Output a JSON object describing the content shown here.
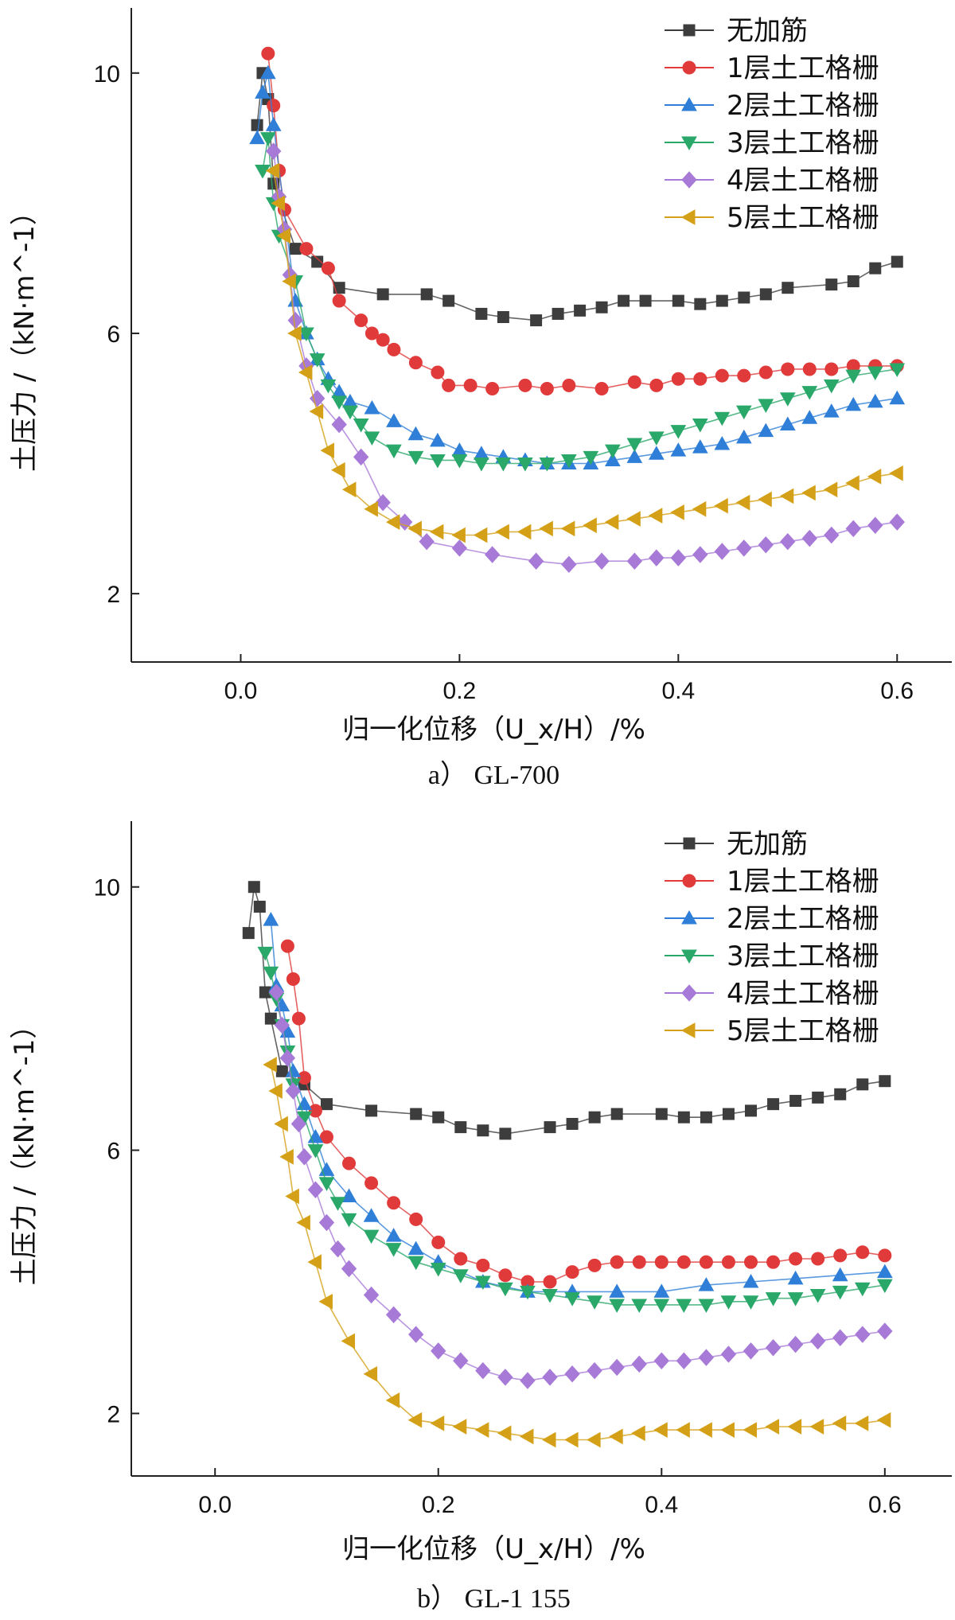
{
  "chart_data": [
    {
      "type": "line",
      "caption": "a） GL-700",
      "xlabel": "归一化位移（U_x/H）/%",
      "ylabel": "土压力 /（kN·m^-1）",
      "xlim": [
        -0.1,
        0.65
      ],
      "ylim": [
        0.95,
        11.0
      ],
      "xticks": [
        "0.0",
        "0.2",
        "0.4",
        "0.6"
      ],
      "yticks": [
        "2",
        "6",
        "10"
      ],
      "legend_position": "top-right",
      "series": [
        {
          "name": "无加筋",
          "marker": "square",
          "color": "#3d3d3d",
          "x": [
            0.015,
            0.02,
            0.025,
            0.03,
            0.05,
            0.07,
            0.09,
            0.13,
            0.17,
            0.19,
            0.22,
            0.24,
            0.27,
            0.29,
            0.31,
            0.33,
            0.35,
            0.37,
            0.4,
            0.42,
            0.44,
            0.46,
            0.48,
            0.5,
            0.54,
            0.56,
            0.58,
            0.6
          ],
          "y": [
            9.2,
            10.0,
            9.6,
            8.3,
            7.3,
            7.1,
            6.7,
            6.6,
            6.6,
            6.5,
            6.3,
            6.25,
            6.2,
            6.3,
            6.35,
            6.4,
            6.5,
            6.5,
            6.5,
            6.45,
            6.5,
            6.55,
            6.6,
            6.7,
            6.75,
            6.8,
            7.0,
            7.1
          ]
        },
        {
          "name": "1层土工格栅",
          "marker": "circle",
          "color": "#e03a3a",
          "x": [
            0.025,
            0.03,
            0.035,
            0.04,
            0.06,
            0.08,
            0.09,
            0.11,
            0.12,
            0.13,
            0.14,
            0.16,
            0.18,
            0.19,
            0.21,
            0.23,
            0.26,
            0.28,
            0.3,
            0.33,
            0.36,
            0.38,
            0.4,
            0.42,
            0.44,
            0.46,
            0.48,
            0.5,
            0.52,
            0.54,
            0.56,
            0.58,
            0.6
          ],
          "y": [
            10.3,
            9.5,
            8.5,
            7.9,
            7.3,
            7.0,
            6.5,
            6.2,
            6.0,
            5.9,
            5.75,
            5.55,
            5.4,
            5.2,
            5.2,
            5.15,
            5.2,
            5.15,
            5.2,
            5.15,
            5.25,
            5.2,
            5.3,
            5.3,
            5.35,
            5.35,
            5.4,
            5.45,
            5.45,
            5.45,
            5.5,
            5.5,
            5.5
          ]
        },
        {
          "name": "2层土工格栅",
          "marker": "triangle-up",
          "color": "#2f7fd8",
          "x": [
            0.015,
            0.02,
            0.025,
            0.03,
            0.05,
            0.06,
            0.07,
            0.08,
            0.09,
            0.1,
            0.12,
            0.14,
            0.16,
            0.18,
            0.2,
            0.22,
            0.24,
            0.26,
            0.28,
            0.3,
            0.32,
            0.34,
            0.36,
            0.38,
            0.4,
            0.42,
            0.44,
            0.46,
            0.48,
            0.5,
            0.52,
            0.54,
            0.56,
            0.58,
            0.6
          ],
          "y": [
            9.0,
            9.7,
            10.0,
            9.2,
            6.5,
            6.0,
            5.6,
            5.3,
            5.1,
            4.95,
            4.85,
            4.65,
            4.45,
            4.35,
            4.2,
            4.15,
            4.1,
            4.05,
            4.0,
            4.0,
            4.0,
            4.05,
            4.1,
            4.15,
            4.2,
            4.25,
            4.3,
            4.4,
            4.5,
            4.6,
            4.7,
            4.8,
            4.9,
            4.95,
            5.0
          ]
        },
        {
          "name": "3层土工格栅",
          "marker": "triangle-down",
          "color": "#2aa86a",
          "x": [
            0.02,
            0.025,
            0.03,
            0.035,
            0.05,
            0.06,
            0.07,
            0.08,
            0.09,
            0.1,
            0.11,
            0.12,
            0.14,
            0.16,
            0.18,
            0.2,
            0.22,
            0.24,
            0.26,
            0.28,
            0.3,
            0.32,
            0.34,
            0.36,
            0.38,
            0.4,
            0.42,
            0.44,
            0.46,
            0.48,
            0.5,
            0.52,
            0.54,
            0.56,
            0.58,
            0.6
          ],
          "y": [
            8.5,
            9.0,
            8.0,
            7.5,
            6.8,
            6.0,
            5.6,
            5.2,
            4.95,
            4.8,
            4.6,
            4.4,
            4.2,
            4.1,
            4.05,
            4.05,
            4.0,
            4.0,
            4.0,
            4.0,
            4.05,
            4.1,
            4.2,
            4.3,
            4.4,
            4.5,
            4.6,
            4.7,
            4.8,
            4.9,
            5.0,
            5.1,
            5.2,
            5.35,
            5.4,
            5.45
          ]
        },
        {
          "name": "4层土工格栅",
          "marker": "diamond",
          "color": "#a77ad8",
          "x": [
            0.03,
            0.035,
            0.04,
            0.045,
            0.05,
            0.06,
            0.07,
            0.09,
            0.11,
            0.13,
            0.15,
            0.17,
            0.2,
            0.23,
            0.27,
            0.3,
            0.33,
            0.36,
            0.38,
            0.4,
            0.42,
            0.44,
            0.46,
            0.48,
            0.5,
            0.52,
            0.54,
            0.56,
            0.58,
            0.6
          ],
          "y": [
            8.8,
            8.1,
            7.6,
            6.9,
            6.2,
            5.5,
            5.0,
            4.6,
            4.1,
            3.4,
            3.1,
            2.8,
            2.7,
            2.6,
            2.5,
            2.45,
            2.5,
            2.5,
            2.55,
            2.55,
            2.6,
            2.65,
            2.7,
            2.75,
            2.8,
            2.85,
            2.9,
            3.0,
            3.05,
            3.1
          ]
        },
        {
          "name": "5层土工格栅",
          "marker": "triangle-left",
          "color": "#d4a017",
          "x": [
            0.03,
            0.035,
            0.04,
            0.045,
            0.05,
            0.06,
            0.07,
            0.08,
            0.09,
            0.1,
            0.12,
            0.14,
            0.16,
            0.18,
            0.2,
            0.22,
            0.24,
            0.26,
            0.28,
            0.3,
            0.32,
            0.34,
            0.36,
            0.38,
            0.4,
            0.42,
            0.44,
            0.46,
            0.48,
            0.5,
            0.52,
            0.54,
            0.56,
            0.58,
            0.6
          ],
          "y": [
            8.5,
            8.0,
            7.5,
            6.8,
            6.0,
            5.4,
            4.8,
            4.2,
            3.9,
            3.6,
            3.3,
            3.1,
            3.0,
            2.95,
            2.9,
            2.9,
            2.95,
            2.95,
            3.0,
            3.0,
            3.05,
            3.1,
            3.15,
            3.2,
            3.25,
            3.3,
            3.35,
            3.4,
            3.45,
            3.5,
            3.55,
            3.6,
            3.7,
            3.8,
            3.85
          ]
        }
      ]
    },
    {
      "type": "line",
      "caption": "b） GL-1 155",
      "xlabel": "归一化位移（U_x/H）/%",
      "ylabel": "土压力 /（kN·m^-1）",
      "xlim": [
        -0.075,
        0.66
      ],
      "ylim": [
        1.05,
        11.0
      ],
      "xticks": [
        "0.0",
        "0.2",
        "0.4",
        "0.6"
      ],
      "yticks": [
        "2",
        "6",
        "10"
      ],
      "legend_position": "top-right",
      "series": [
        {
          "name": "无加筋",
          "marker": "square",
          "color": "#3d3d3d",
          "x": [
            0.03,
            0.035,
            0.04,
            0.045,
            0.05,
            0.06,
            0.08,
            0.1,
            0.14,
            0.18,
            0.2,
            0.22,
            0.24,
            0.26,
            0.3,
            0.32,
            0.34,
            0.36,
            0.4,
            0.42,
            0.44,
            0.46,
            0.48,
            0.5,
            0.52,
            0.54,
            0.56,
            0.58,
            0.6
          ],
          "y": [
            9.3,
            10.0,
            9.7,
            8.4,
            8.0,
            7.2,
            7.0,
            6.7,
            6.6,
            6.55,
            6.5,
            6.35,
            6.3,
            6.25,
            6.35,
            6.4,
            6.5,
            6.55,
            6.55,
            6.5,
            6.5,
            6.55,
            6.6,
            6.7,
            6.75,
            6.8,
            6.85,
            7.0,
            7.05
          ]
        },
        {
          "name": "1层土工格栅",
          "marker": "circle",
          "color": "#e03a3a",
          "x": [
            0.065,
            0.07,
            0.075,
            0.08,
            0.09,
            0.1,
            0.12,
            0.14,
            0.16,
            0.18,
            0.2,
            0.22,
            0.24,
            0.26,
            0.28,
            0.3,
            0.32,
            0.34,
            0.36,
            0.38,
            0.4,
            0.42,
            0.44,
            0.46,
            0.48,
            0.5,
            0.52,
            0.54,
            0.56,
            0.58,
            0.6
          ],
          "y": [
            9.1,
            8.6,
            8.0,
            7.1,
            6.6,
            6.2,
            5.8,
            5.5,
            5.2,
            4.95,
            4.6,
            4.35,
            4.25,
            4.1,
            4.0,
            4.0,
            4.15,
            4.25,
            4.3,
            4.3,
            4.3,
            4.3,
            4.3,
            4.3,
            4.3,
            4.3,
            4.35,
            4.35,
            4.4,
            4.45,
            4.4
          ]
        },
        {
          "name": "2层土工格栅",
          "marker": "triangle-up",
          "color": "#2f7fd8",
          "x": [
            0.05,
            0.055,
            0.06,
            0.065,
            0.07,
            0.08,
            0.09,
            0.1,
            0.12,
            0.14,
            0.16,
            0.18,
            0.2,
            0.24,
            0.28,
            0.32,
            0.36,
            0.4,
            0.44,
            0.48,
            0.52,
            0.56,
            0.6
          ],
          "y": [
            9.5,
            8.5,
            8.2,
            7.8,
            7.2,
            6.7,
            6.2,
            5.7,
            5.3,
            5.0,
            4.7,
            4.5,
            4.3,
            4.0,
            3.85,
            3.85,
            3.85,
            3.85,
            3.95,
            4.0,
            4.05,
            4.1,
            4.15
          ]
        },
        {
          "name": "3层土工格栅",
          "marker": "triangle-down",
          "color": "#2aa86a",
          "x": [
            0.045,
            0.05,
            0.055,
            0.06,
            0.065,
            0.07,
            0.08,
            0.09,
            0.1,
            0.11,
            0.12,
            0.14,
            0.16,
            0.18,
            0.2,
            0.22,
            0.24,
            0.26,
            0.28,
            0.3,
            0.32,
            0.34,
            0.36,
            0.38,
            0.4,
            0.42,
            0.44,
            0.46,
            0.48,
            0.5,
            0.52,
            0.54,
            0.56,
            0.58,
            0.6
          ],
          "y": [
            9.0,
            8.7,
            8.3,
            7.9,
            7.5,
            7.0,
            6.5,
            6.0,
            5.5,
            5.2,
            4.95,
            4.7,
            4.5,
            4.3,
            4.2,
            4.1,
            4.0,
            3.9,
            3.85,
            3.8,
            3.75,
            3.7,
            3.65,
            3.65,
            3.65,
            3.65,
            3.65,
            3.7,
            3.7,
            3.75,
            3.75,
            3.8,
            3.85,
            3.9,
            3.95
          ]
        },
        {
          "name": "4层土工格栅",
          "marker": "diamond",
          "color": "#a77ad8",
          "x": [
            0.055,
            0.06,
            0.065,
            0.07,
            0.075,
            0.08,
            0.09,
            0.1,
            0.11,
            0.12,
            0.14,
            0.16,
            0.18,
            0.2,
            0.22,
            0.24,
            0.26,
            0.28,
            0.3,
            0.32,
            0.34,
            0.36,
            0.38,
            0.4,
            0.42,
            0.44,
            0.46,
            0.48,
            0.5,
            0.52,
            0.54,
            0.56,
            0.58,
            0.6
          ],
          "y": [
            8.4,
            7.9,
            7.4,
            6.9,
            6.4,
            5.9,
            5.4,
            4.9,
            4.5,
            4.2,
            3.8,
            3.5,
            3.2,
            2.95,
            2.8,
            2.65,
            2.55,
            2.5,
            2.55,
            2.6,
            2.65,
            2.7,
            2.75,
            2.8,
            2.8,
            2.85,
            2.9,
            2.95,
            3.0,
            3.05,
            3.1,
            3.15,
            3.2,
            3.25
          ]
        },
        {
          "name": "5层土工格栅",
          "marker": "triangle-left",
          "color": "#d4a017",
          "x": [
            0.05,
            0.055,
            0.06,
            0.065,
            0.07,
            0.08,
            0.09,
            0.1,
            0.12,
            0.14,
            0.16,
            0.18,
            0.2,
            0.22,
            0.24,
            0.26,
            0.28,
            0.3,
            0.32,
            0.34,
            0.36,
            0.38,
            0.4,
            0.42,
            0.44,
            0.46,
            0.48,
            0.5,
            0.52,
            0.54,
            0.56,
            0.58,
            0.6
          ],
          "y": [
            7.3,
            6.9,
            6.4,
            5.9,
            5.3,
            4.9,
            4.3,
            3.7,
            3.1,
            2.6,
            2.2,
            1.9,
            1.85,
            1.8,
            1.75,
            1.7,
            1.65,
            1.6,
            1.6,
            1.6,
            1.65,
            1.7,
            1.75,
            1.75,
            1.75,
            1.75,
            1.75,
            1.8,
            1.8,
            1.8,
            1.85,
            1.85,
            1.9
          ]
        }
      ]
    }
  ]
}
